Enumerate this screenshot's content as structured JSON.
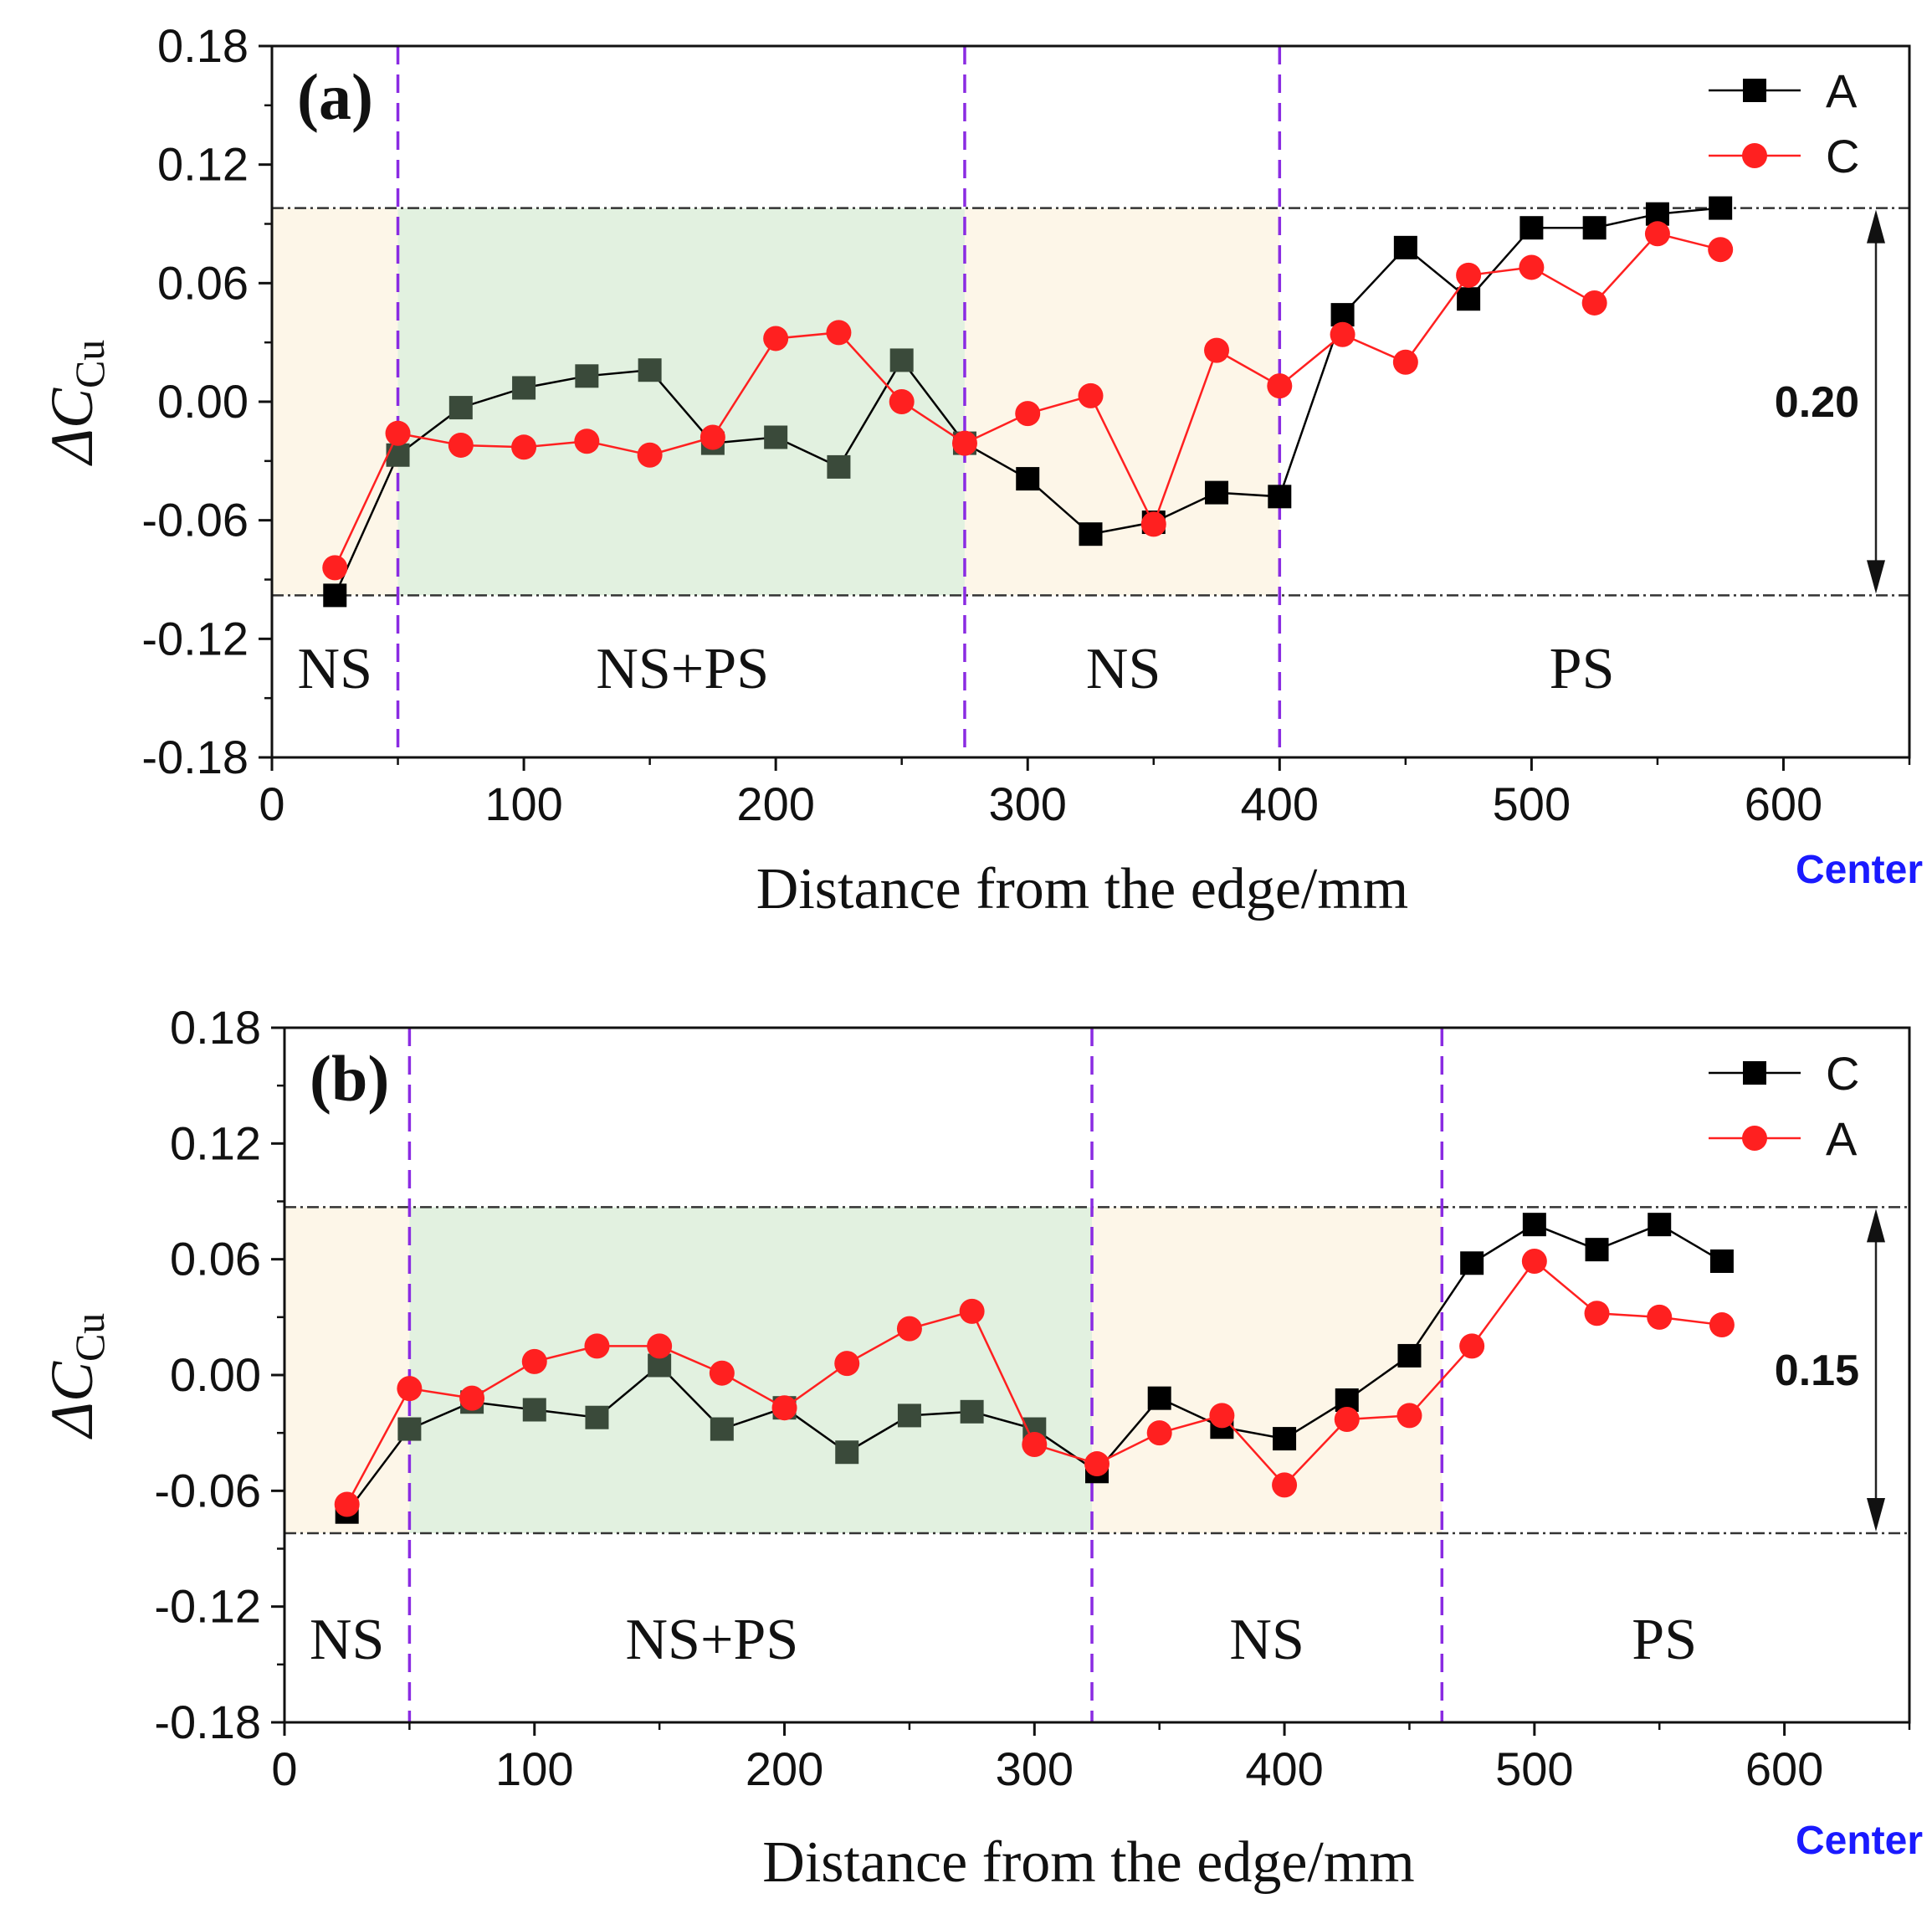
{
  "colors": {
    "series_black": "#000000",
    "series_black_in_green": "#3a4a3a",
    "series_red": "#ff2020",
    "divider": "#8a2be2",
    "center_text": "#1a1aff",
    "zone_beige": "#fdf6e8",
    "zone_green": "#e2f1e0"
  },
  "chart_data": [
    {
      "type": "line",
      "panel_label": "(a)",
      "xlabel": "Distance from the edge/mm",
      "ylabel": "ΔC",
      "ylabel_sub": "Cu",
      "xlim": [
        0,
        650
      ],
      "ylim": [
        -0.18,
        0.18
      ],
      "xticks": [
        "0",
        "100",
        "200",
        "300",
        "400",
        "500",
        "600"
      ],
      "yticks": [
        "0.18",
        "0.12",
        "0.06",
        "0.00",
        "-0.06",
        "-0.12",
        "-0.18"
      ],
      "center_label": "Center",
      "zone_dividers_x": [
        50,
        275,
        400
      ],
      "shaded_zones": [
        {
          "x0": 0,
          "x1": 50,
          "color": "beige"
        },
        {
          "x0": 50,
          "x1": 275,
          "color": "green"
        },
        {
          "x0": 275,
          "x1": 400,
          "color": "beige"
        }
      ],
      "shade_y_range": [
        -0.098,
        0.098
      ],
      "regions": [
        {
          "label": "NS",
          "x": 25
        },
        {
          "label": "NS+PS",
          "x": 163
        },
        {
          "label": "NS",
          "x": 338
        },
        {
          "label": "PS",
          "x": 520
        }
      ],
      "reference_lines_y": [
        0.098,
        -0.098
      ],
      "range_label": "0.20",
      "series": [
        {
          "name": "A",
          "marker": "square",
          "color": "black",
          "x": [
            25,
            50,
            75,
            100,
            125,
            150,
            175,
            200,
            225,
            250,
            275,
            300,
            325,
            350,
            375,
            400,
            425,
            450,
            475,
            500,
            525,
            550,
            575
          ],
          "y": [
            -0.098,
            -0.027,
            -0.003,
            0.007,
            0.013,
            0.016,
            -0.021,
            -0.018,
            -0.033,
            0.021,
            -0.021,
            -0.039,
            -0.067,
            -0.061,
            -0.046,
            -0.048,
            0.044,
            0.078,
            0.052,
            0.088,
            0.088,
            0.095,
            0.098
          ]
        },
        {
          "name": "C",
          "marker": "circle",
          "color": "red",
          "x": [
            25,
            50,
            75,
            100,
            125,
            150,
            175,
            200,
            225,
            250,
            275,
            300,
            325,
            350,
            375,
            400,
            425,
            450,
            475,
            500,
            525,
            550,
            575
          ],
          "y": [
            -0.084,
            -0.016,
            -0.022,
            -0.023,
            -0.02,
            -0.027,
            -0.018,
            0.032,
            0.035,
            0.0,
            -0.021,
            -0.006,
            0.003,
            -0.062,
            0.026,
            0.008,
            0.034,
            0.02,
            0.064,
            0.068,
            0.05,
            0.085,
            0.077
          ]
        }
      ]
    },
    {
      "type": "line",
      "panel_label": "(b)",
      "xlabel": "Distance from the edge/mm",
      "ylabel": "ΔC",
      "ylabel_sub": "Cu",
      "xlim": [
        0,
        650
      ],
      "ylim": [
        -0.18,
        0.18
      ],
      "xticks": [
        "0",
        "100",
        "200",
        "300",
        "400",
        "500",
        "600"
      ],
      "yticks": [
        "0.18",
        "0.12",
        "0.06",
        "0.00",
        "-0.06",
        "-0.12",
        "-0.18"
      ],
      "center_label": "Center",
      "zone_dividers_x": [
        50,
        323,
        463
      ],
      "shaded_zones": [
        {
          "x0": 0,
          "x1": 50,
          "color": "beige"
        },
        {
          "x0": 50,
          "x1": 323,
          "color": "green"
        },
        {
          "x0": 323,
          "x1": 463,
          "color": "beige"
        }
      ],
      "shade_y_range": [
        -0.082,
        0.087
      ],
      "regions": [
        {
          "label": "NS",
          "x": 25
        },
        {
          "label": "NS+PS",
          "x": 171
        },
        {
          "label": "NS",
          "x": 393
        },
        {
          "label": "PS",
          "x": 552
        }
      ],
      "reference_lines_y": [
        0.087,
        -0.082
      ],
      "range_label": "0.15",
      "series": [
        {
          "name": "C",
          "marker": "square",
          "color": "black",
          "x": [
            25,
            50,
            75,
            100,
            125,
            150,
            175,
            200,
            225,
            250,
            275,
            300,
            325,
            350,
            375,
            400,
            425,
            450,
            475,
            500,
            525,
            550,
            575
          ],
          "y": [
            -0.071,
            -0.028,
            -0.014,
            -0.018,
            -0.022,
            0.005,
            -0.028,
            -0.017,
            -0.04,
            -0.021,
            -0.019,
            -0.028,
            -0.05,
            -0.012,
            -0.027,
            -0.033,
            -0.013,
            0.01,
            0.058,
            0.078,
            0.065,
            0.078,
            0.059
          ]
        },
        {
          "name": "A",
          "marker": "circle",
          "color": "red",
          "x": [
            25,
            50,
            75,
            100,
            125,
            150,
            175,
            200,
            225,
            250,
            275,
            300,
            325,
            350,
            375,
            400,
            425,
            450,
            475,
            500,
            525,
            550,
            575
          ],
          "y": [
            -0.067,
            -0.007,
            -0.012,
            0.007,
            0.015,
            0.015,
            0.001,
            -0.017,
            0.006,
            0.024,
            0.033,
            -0.036,
            -0.046,
            -0.03,
            -0.021,
            -0.057,
            -0.023,
            -0.021,
            0.015,
            0.059,
            0.032,
            0.03,
            0.026
          ]
        }
      ]
    }
  ]
}
